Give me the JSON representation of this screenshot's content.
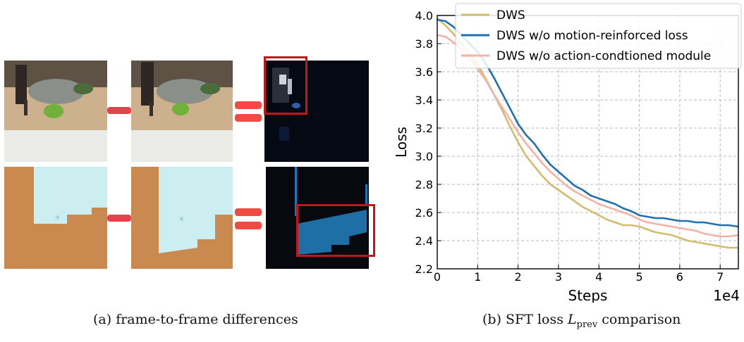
{
  "captions": {
    "left": "(a)  frame-to-frame differences",
    "right_prefix": "(b)  SFT loss ",
    "right_math": "L",
    "right_sub": "prev",
    "right_suffix": " comparison"
  },
  "chart_data": {
    "type": "line",
    "xlabel": "Steps",
    "ylabel": "Loss",
    "x_scale_label": "1e4",
    "xlim": [
      0,
      7.45
    ],
    "ylim": [
      2.2,
      4.0
    ],
    "x_ticks": [
      "0",
      "1",
      "2",
      "3",
      "4",
      "5",
      "6",
      "7"
    ],
    "y_ticks": [
      "2.2",
      "2.4",
      "2.6",
      "2.8",
      "3.0",
      "3.2",
      "3.4",
      "3.6",
      "3.8",
      "4.0"
    ],
    "grid": true,
    "legend_position": "top-right",
    "series": [
      {
        "name": "DWS",
        "color": "#d4bc6e",
        "x": [
          0,
          0.2,
          0.4,
          0.6,
          0.8,
          1.0,
          1.2,
          1.4,
          1.6,
          1.8,
          2.0,
          2.2,
          2.4,
          2.6,
          2.8,
          3.0,
          3.2,
          3.4,
          3.6,
          3.8,
          4.0,
          4.2,
          4.4,
          4.6,
          4.8,
          5.0,
          5.2,
          5.4,
          5.6,
          5.8,
          6.0,
          6.2,
          6.4,
          6.6,
          6.8,
          7.0,
          7.2,
          7.45
        ],
        "y": [
          3.98,
          3.93,
          3.87,
          3.8,
          3.73,
          3.65,
          3.55,
          3.44,
          3.33,
          3.21,
          3.1,
          3.0,
          2.93,
          2.86,
          2.8,
          2.76,
          2.72,
          2.68,
          2.64,
          2.61,
          2.58,
          2.55,
          2.53,
          2.51,
          2.51,
          2.5,
          2.48,
          2.46,
          2.45,
          2.44,
          2.42,
          2.4,
          2.39,
          2.38,
          2.37,
          2.36,
          2.35,
          2.35
        ]
      },
      {
        "name": "DWS w/o motion-reinforced loss",
        "color": "#1f6fb5",
        "x": [
          0,
          0.2,
          0.4,
          0.6,
          0.8,
          1.0,
          1.2,
          1.4,
          1.6,
          1.8,
          2.0,
          2.2,
          2.4,
          2.6,
          2.8,
          3.0,
          3.2,
          3.4,
          3.6,
          3.8,
          4.0,
          4.2,
          4.4,
          4.6,
          4.8,
          5.0,
          5.2,
          5.4,
          5.6,
          5.8,
          6.0,
          6.2,
          6.4,
          6.6,
          6.8,
          7.0,
          7.2,
          7.45
        ],
        "y": [
          3.97,
          3.96,
          3.92,
          3.86,
          3.8,
          3.74,
          3.66,
          3.56,
          3.45,
          3.34,
          3.23,
          3.15,
          3.09,
          3.01,
          2.94,
          2.89,
          2.84,
          2.79,
          2.76,
          2.72,
          2.7,
          2.68,
          2.66,
          2.63,
          2.61,
          2.58,
          2.57,
          2.56,
          2.56,
          2.55,
          2.54,
          2.54,
          2.53,
          2.53,
          2.52,
          2.51,
          2.51,
          2.5
        ]
      },
      {
        "name": "DWS w/o action-condtioned module",
        "color": "#f5b1a6",
        "x": [
          0,
          0.2,
          0.4,
          0.6,
          0.8,
          1.0,
          1.2,
          1.4,
          1.6,
          1.8,
          2.0,
          2.2,
          2.4,
          2.6,
          2.8,
          3.0,
          3.2,
          3.4,
          3.6,
          3.8,
          4.0,
          4.2,
          4.4,
          4.6,
          4.8,
          5.0,
          5.2,
          5.4,
          5.6,
          5.8,
          6.0,
          6.2,
          6.4,
          6.6,
          6.8,
          7.0,
          7.2,
          7.45
        ],
        "y": [
          3.86,
          3.85,
          3.81,
          3.76,
          3.7,
          3.62,
          3.54,
          3.44,
          3.35,
          3.26,
          3.17,
          3.09,
          3.02,
          2.95,
          2.89,
          2.84,
          2.79,
          2.75,
          2.72,
          2.69,
          2.66,
          2.64,
          2.62,
          2.6,
          2.58,
          2.55,
          2.53,
          2.52,
          2.51,
          2.5,
          2.49,
          2.48,
          2.47,
          2.45,
          2.44,
          2.43,
          2.43,
          2.44
        ]
      }
    ]
  }
}
